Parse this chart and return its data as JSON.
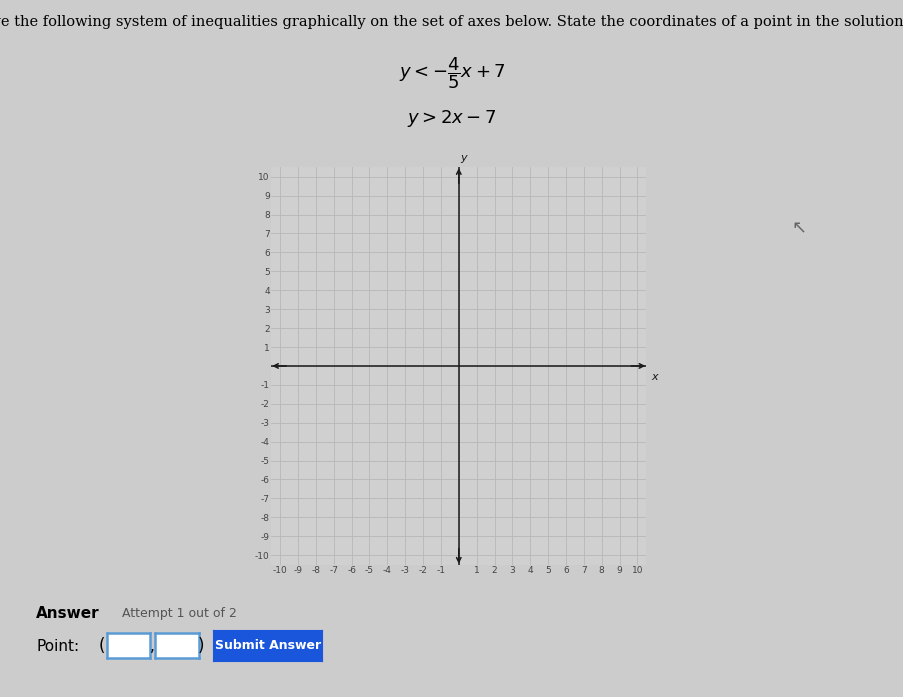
{
  "title_text": "Solve the following system of inequalities graphically on the set of axes below. State the coordinates of a point in the solution set.",
  "xlim": [
    -10.5,
    10.5
  ],
  "ylim": [
    -10.5,
    10.5
  ],
  "ticks": [
    -10,
    -9,
    -8,
    -7,
    -6,
    -5,
    -4,
    -3,
    -2,
    -1,
    0,
    1,
    2,
    3,
    4,
    5,
    6,
    7,
    8,
    9,
    10
  ],
  "background_color": "#d8d8d8",
  "grid_color": "#c0c0c0",
  "grid_bg": "#d0d0d0",
  "axis_color": "#1a1a1a",
  "tick_label_color": "#444444",
  "page_bg": "#cccccc",
  "title_fontsize": 10.5,
  "tick_fontsize": 6.5,
  "answer_fontsize": 11,
  "attempt_fontsize": 9,
  "submit_bg": "#1a56db",
  "submit_text_color": "#ffffff",
  "answer_label": "Answer",
  "attempt_label": "Attempt 1 out of 2",
  "point_label": "Point:",
  "submit_label": "Submit Answer"
}
